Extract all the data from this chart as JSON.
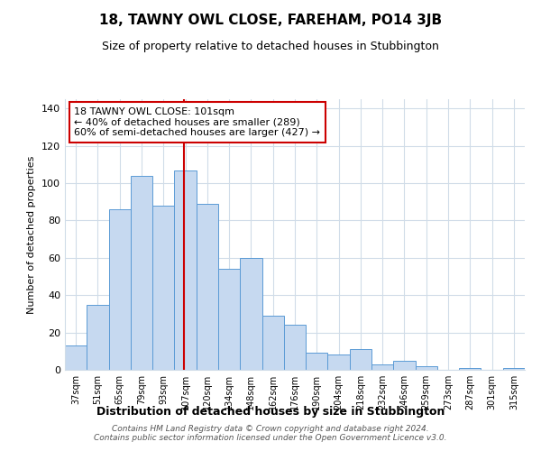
{
  "title": "18, TAWNY OWL CLOSE, FAREHAM, PO14 3JB",
  "subtitle": "Size of property relative to detached houses in Stubbington",
  "xlabel": "Distribution of detached houses by size in Stubbington",
  "ylabel": "Number of detached properties",
  "bar_labels": [
    "37sqm",
    "51sqm",
    "65sqm",
    "79sqm",
    "93sqm",
    "107sqm",
    "120sqm",
    "134sqm",
    "148sqm",
    "162sqm",
    "176sqm",
    "190sqm",
    "204sqm",
    "218sqm",
    "232sqm",
    "246sqm",
    "259sqm",
    "273sqm",
    "287sqm",
    "301sqm",
    "315sqm"
  ],
  "bar_values": [
    13,
    35,
    86,
    104,
    88,
    107,
    89,
    54,
    60,
    29,
    24,
    9,
    8,
    11,
    3,
    5,
    2,
    0,
    1,
    0,
    1
  ],
  "bar_color": "#c6d9f0",
  "bar_edge_color": "#5b9bd5",
  "vline_x": 4.95,
  "vline_color": "#cc0000",
  "annotation_text": "18 TAWNY OWL CLOSE: 101sqm\n← 40% of detached houses are smaller (289)\n60% of semi-detached houses are larger (427) →",
  "annotation_box_color": "#ffffff",
  "annotation_box_edge_color": "#cc0000",
  "ylim": [
    0,
    145
  ],
  "yticks": [
    0,
    20,
    40,
    60,
    80,
    100,
    120,
    140
  ],
  "footer_text": "Contains HM Land Registry data © Crown copyright and database right 2024.\nContains public sector information licensed under the Open Government Licence v3.0.",
  "background_color": "#ffffff",
  "grid_color": "#d0dce8"
}
